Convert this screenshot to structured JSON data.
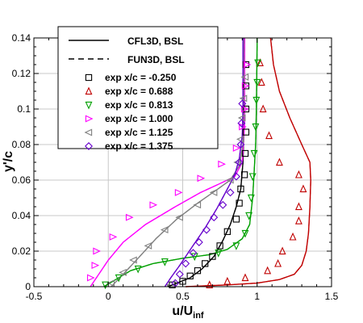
{
  "chart_data": {
    "type": "line",
    "xlabel_main": "u/U",
    "xlabel_sub": "inf",
    "ylabel": "y'/c",
    "xlim": [
      -0.5,
      1.5
    ],
    "ylim": [
      0,
      0.14
    ],
    "x_ticks": [
      -0.5,
      0,
      0.5,
      1,
      1.5
    ],
    "x_tick_labels": [
      "-0.5",
      "0",
      "0.5",
      "1",
      "1.5"
    ],
    "y_ticks": [
      0,
      0.02,
      0.04,
      0.06,
      0.08,
      0.1,
      0.12,
      0.14
    ],
    "y_tick_labels": [
      "0",
      "0.02",
      "0.04",
      "0.06",
      "0.08",
      "0.1",
      "0.12",
      "0.14"
    ],
    "grid": true,
    "legend_position": "top-left",
    "legend": {
      "cfl3d": "CFL3D, BSL",
      "fun3d": "FUN3D, BSL"
    },
    "series": [
      {
        "name": "exp x/c = -0.250",
        "marker": "square",
        "color": "#000000",
        "line": [
          [
            0.4,
            0
          ],
          [
            0.46,
            0.002
          ],
          [
            0.55,
            0.005
          ],
          [
            0.63,
            0.01
          ],
          [
            0.71,
            0.017
          ],
          [
            0.77,
            0.026
          ],
          [
            0.82,
            0.035
          ],
          [
            0.86,
            0.045
          ],
          [
            0.89,
            0.055
          ],
          [
            0.905,
            0.07
          ],
          [
            0.91,
            0.085
          ],
          [
            0.913,
            0.1
          ],
          [
            0.915,
            0.14
          ]
        ],
        "points": [
          [
            0.43,
            0.001
          ],
          [
            0.5,
            0.003
          ],
          [
            0.55,
            0.006
          ],
          [
            0.6,
            0.009
          ],
          [
            0.65,
            0.013
          ],
          [
            0.7,
            0.017
          ],
          [
            0.75,
            0.023
          ],
          [
            0.8,
            0.031
          ],
          [
            0.86,
            0.038
          ],
          [
            0.88,
            0.047
          ],
          [
            0.89,
            0.055
          ],
          [
            0.915,
            0.063
          ],
          [
            0.92,
            0.075
          ],
          [
            0.925,
            0.087
          ],
          [
            0.925,
            0.1
          ],
          [
            0.925,
            0.113
          ],
          [
            0.925,
            0.125
          ]
        ]
      },
      {
        "name": "exp x/c = 0.688",
        "marker": "triangle-up",
        "color": "#c00000",
        "line": [
          [
            0.52,
            0
          ],
          [
            0.8,
            0.001
          ],
          [
            1.0,
            0.002
          ],
          [
            1.15,
            0.004
          ],
          [
            1.25,
            0.007
          ],
          [
            1.3,
            0.012
          ],
          [
            1.33,
            0.02
          ],
          [
            1.345,
            0.03
          ],
          [
            1.355,
            0.045
          ],
          [
            1.36,
            0.06
          ],
          [
            1.355,
            0.07
          ],
          [
            1.3,
            0.08
          ],
          [
            1.22,
            0.095
          ],
          [
            1.15,
            0.11
          ],
          [
            1.11,
            0.125
          ],
          [
            1.09,
            0.14
          ]
        ],
        "points": [
          [
            0.68,
            0.001
          ],
          [
            0.8,
            0.003
          ],
          [
            0.92,
            0.005
          ],
          [
            1.07,
            0.009
          ],
          [
            1.14,
            0.013
          ],
          [
            1.17,
            0.02
          ],
          [
            1.24,
            0.028
          ],
          [
            1.28,
            0.037
          ],
          [
            1.28,
            0.045
          ],
          [
            1.31,
            0.055
          ],
          [
            1.28,
            0.063
          ],
          [
            1.15,
            0.07
          ],
          [
            1.08,
            0.085
          ],
          [
            1.04,
            0.1
          ],
          [
            1.03,
            0.115
          ],
          [
            1.02,
            0.126
          ]
        ]
      },
      {
        "name": "exp x/c = 0.813",
        "marker": "triangle-down",
        "color": "#00a000",
        "line": [
          [
            -0.03,
            0
          ],
          [
            0.05,
            0.004
          ],
          [
            0.15,
            0.009
          ],
          [
            0.3,
            0.013
          ],
          [
            0.5,
            0.016
          ],
          [
            0.68,
            0.018
          ],
          [
            0.8,
            0.021
          ],
          [
            0.9,
            0.027
          ],
          [
            0.95,
            0.035
          ],
          [
            0.97,
            0.05
          ],
          [
            0.98,
            0.065
          ],
          [
            0.99,
            0.08
          ],
          [
            0.995,
            0.1
          ],
          [
            1.0,
            0.14
          ]
        ],
        "points": [
          [
            -0.02,
            0.001
          ],
          [
            0.07,
            0.005
          ],
          [
            0.2,
            0.01
          ],
          [
            0.38,
            0.014
          ],
          [
            0.58,
            0.017
          ],
          [
            0.74,
            0.019
          ],
          [
            0.86,
            0.023
          ],
          [
            0.92,
            0.03
          ],
          [
            0.945,
            0.04
          ],
          [
            0.96,
            0.05
          ],
          [
            0.97,
            0.062
          ],
          [
            0.98,
            0.075
          ],
          [
            0.99,
            0.09
          ],
          [
            0.995,
            0.105
          ],
          [
            1.0,
            0.115
          ],
          [
            1.005,
            0.126
          ]
        ]
      },
      {
        "name": "exp x/c = 1.000",
        "marker": "triangle-right",
        "color": "#ff00ff",
        "line": [
          [
            -0.12,
            0
          ],
          [
            -0.08,
            0.005
          ],
          [
            0.0,
            0.015
          ],
          [
            0.1,
            0.025
          ],
          [
            0.25,
            0.035
          ],
          [
            0.45,
            0.045
          ],
          [
            0.62,
            0.053
          ],
          [
            0.75,
            0.058
          ],
          [
            0.85,
            0.062
          ],
          [
            0.9,
            0.07
          ],
          [
            0.915,
            0.09
          ],
          [
            0.915,
            0.14
          ]
        ],
        "points": [
          [
            -0.12,
            0.005
          ],
          [
            -0.09,
            0.012
          ],
          [
            -0.08,
            0.02
          ],
          [
            0.03,
            0.028
          ],
          [
            0.14,
            0.039
          ],
          [
            0.3,
            0.046
          ],
          [
            0.47,
            0.053
          ],
          [
            0.62,
            0.061
          ],
          [
            0.76,
            0.069
          ],
          [
            0.86,
            0.078
          ],
          [
            0.9,
            0.09
          ],
          [
            0.915,
            0.1
          ],
          [
            0.92,
            0.113
          ],
          [
            0.93,
            0.125
          ]
        ]
      },
      {
        "name": "exp x/c = 1.125",
        "marker": "triangle-left",
        "color": "#808080",
        "line": [
          [
            0.02,
            0
          ],
          [
            0.1,
            0.007
          ],
          [
            0.2,
            0.016
          ],
          [
            0.32,
            0.027
          ],
          [
            0.46,
            0.038
          ],
          [
            0.6,
            0.047
          ],
          [
            0.72,
            0.054
          ],
          [
            0.82,
            0.06
          ],
          [
            0.88,
            0.068
          ],
          [
            0.905,
            0.08
          ],
          [
            0.91,
            0.1
          ],
          [
            0.91,
            0.14
          ]
        ],
        "points": [
          [
            0.02,
            0.002
          ],
          [
            0.1,
            0.008
          ],
          [
            0.17,
            0.015
          ],
          [
            0.27,
            0.023
          ],
          [
            0.38,
            0.032
          ],
          [
            0.48,
            0.039
          ],
          [
            0.6,
            0.046
          ],
          [
            0.71,
            0.053
          ],
          [
            0.82,
            0.06
          ],
          [
            0.87,
            0.07
          ],
          [
            0.89,
            0.083
          ],
          [
            0.9,
            0.095
          ],
          [
            0.91,
            0.106
          ],
          [
            0.92,
            0.118
          ]
        ]
      },
      {
        "name": "exp x/c = 1.375",
        "marker": "diamond",
        "color": "#6600cc",
        "line": [
          [
            0.38,
            0
          ],
          [
            0.42,
            0.005
          ],
          [
            0.48,
            0.012
          ],
          [
            0.56,
            0.022
          ],
          [
            0.65,
            0.033
          ],
          [
            0.73,
            0.044
          ],
          [
            0.8,
            0.055
          ],
          [
            0.85,
            0.063
          ],
          [
            0.88,
            0.072
          ],
          [
            0.9,
            0.085
          ],
          [
            0.905,
            0.1
          ],
          [
            0.905,
            0.14
          ]
        ],
        "points": [
          [
            0.45,
            0.002
          ],
          [
            0.48,
            0.007
          ],
          [
            0.52,
            0.013
          ],
          [
            0.57,
            0.019
          ],
          [
            0.61,
            0.025
          ],
          [
            0.66,
            0.032
          ],
          [
            0.71,
            0.039
          ],
          [
            0.77,
            0.046
          ],
          [
            0.82,
            0.053
          ],
          [
            0.86,
            0.062
          ],
          [
            0.88,
            0.07
          ],
          [
            0.89,
            0.08
          ],
          [
            0.895,
            0.092
          ],
          [
            0.9,
            0.103
          ]
        ]
      }
    ]
  }
}
